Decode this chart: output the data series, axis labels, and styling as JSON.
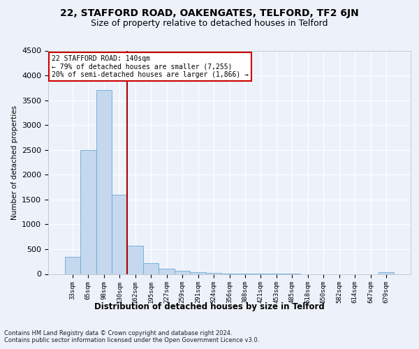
{
  "title1": "22, STAFFORD ROAD, OAKENGATES, TELFORD, TF2 6JN",
  "title2": "Size of property relative to detached houses in Telford",
  "xlabel": "Distribution of detached houses by size in Telford",
  "ylabel": "Number of detached properties",
  "footnote": "Contains HM Land Registry data © Crown copyright and database right 2024.\nContains public sector information licensed under the Open Government Licence v3.0.",
  "categories": [
    "33sqm",
    "65sqm",
    "98sqm",
    "130sqm",
    "162sqm",
    "195sqm",
    "227sqm",
    "259sqm",
    "291sqm",
    "324sqm",
    "356sqm",
    "388sqm",
    "421sqm",
    "453sqm",
    "485sqm",
    "518sqm",
    "550sqm",
    "582sqm",
    "614sqm",
    "647sqm",
    "679sqm"
  ],
  "values": [
    350,
    2500,
    3700,
    1600,
    570,
    220,
    100,
    70,
    40,
    15,
    5,
    3,
    2,
    1,
    1,
    0,
    0,
    0,
    0,
    0,
    30
  ],
  "bar_color": "#c5d8ee",
  "bar_edge_color": "#6aaad4",
  "vline_color": "#aa0000",
  "annotation_text": "22 STAFFORD ROAD: 140sqm\n← 79% of detached houses are smaller (7,255)\n20% of semi-detached houses are larger (1,866) →",
  "annotation_box_color": "#ffffff",
  "annotation_box_edge": "#cc0000",
  "ylim": [
    0,
    4500
  ],
  "yticks": [
    0,
    500,
    1000,
    1500,
    2000,
    2500,
    3000,
    3500,
    4000,
    4500
  ],
  "bg_color": "#edf2fa",
  "grid_color": "#ffffff",
  "title1_fontsize": 10,
  "title2_fontsize": 9,
  "footnote_fontsize": 6
}
